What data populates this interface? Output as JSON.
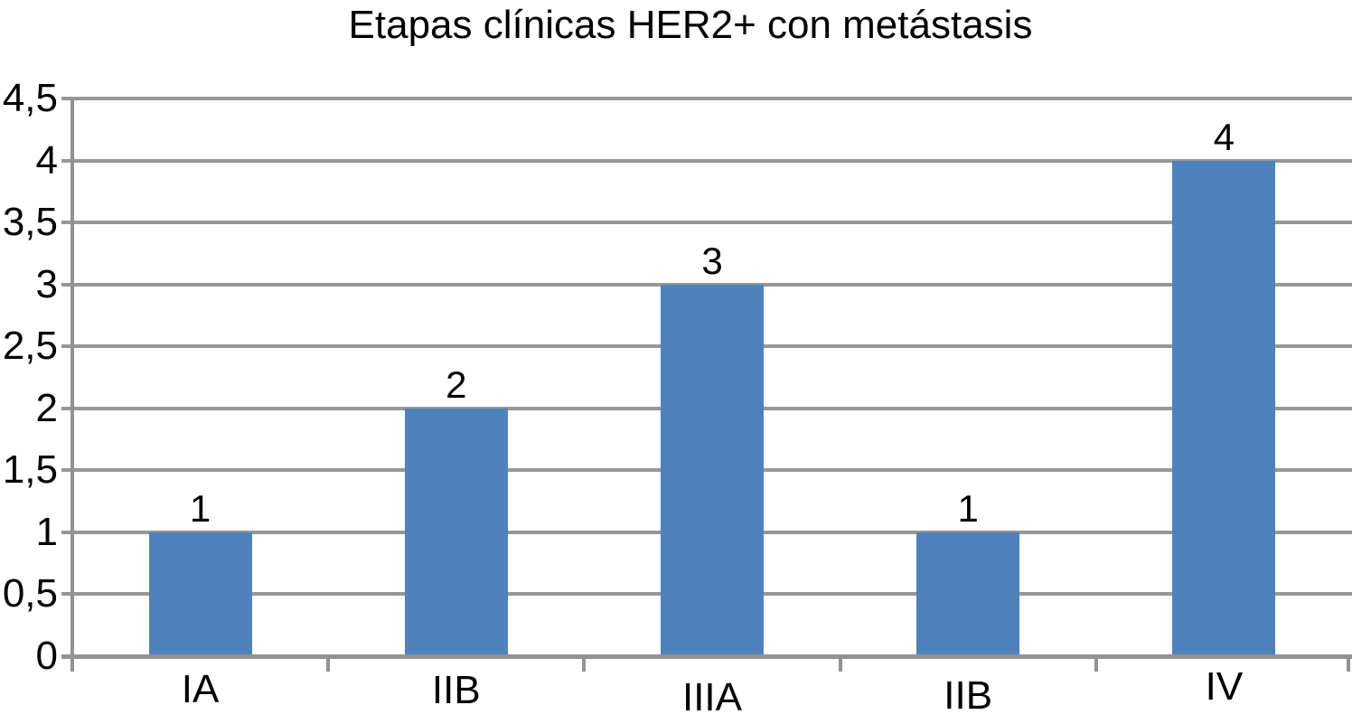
{
  "chart_data": {
    "type": "bar",
    "title": "Etapas clínicas HER2+ con metástasis",
    "categories": [
      "IA",
      "IIB",
      "IIIA",
      "IIB",
      "IV"
    ],
    "values": [
      1,
      2,
      3,
      1,
      4
    ],
    "value_labels": [
      "1",
      "2",
      "3",
      "1",
      "4"
    ],
    "series_count": 1,
    "xlabel": "",
    "ylabel": "",
    "ylim": [
      0,
      4.5
    ],
    "ytick_step": 0.5,
    "ytick_labels": [
      "0",
      "0,5",
      "1",
      "1,5",
      "2",
      "2,5",
      "3",
      "3,5",
      "4",
      "4,5"
    ],
    "decimal_separator": ",",
    "grid": true,
    "legend": false,
    "colors": {
      "bar": "#4F81BD",
      "gridline": "#979797",
      "axis": "#929292",
      "text": "#000000",
      "background": "#FFFFFF"
    }
  }
}
